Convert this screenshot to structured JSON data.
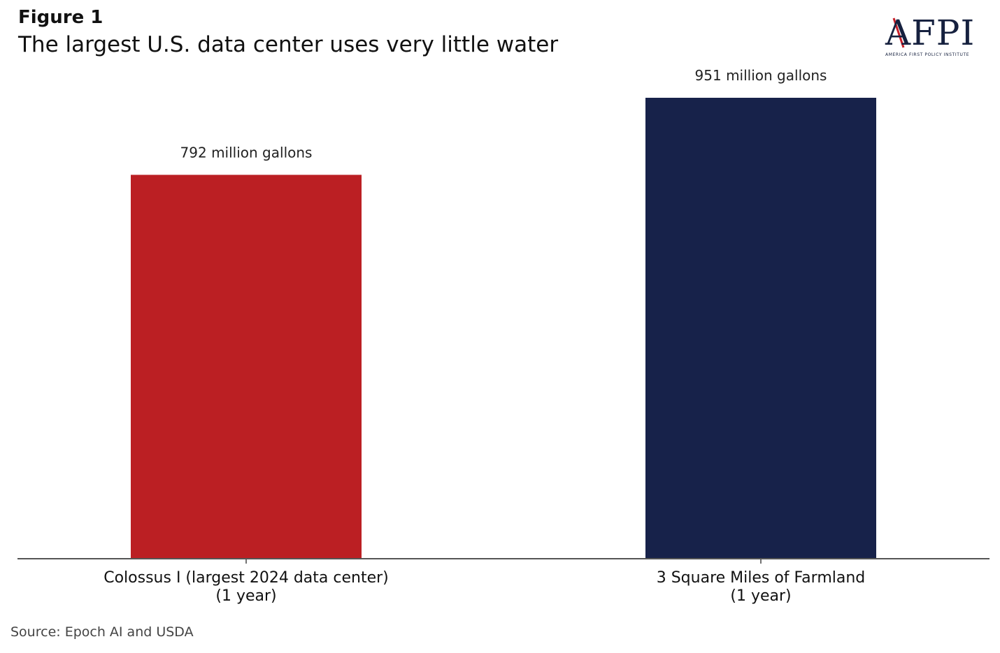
{
  "header": {
    "figure_label": "Figure 1",
    "title": "The largest U.S. data center uses very little water"
  },
  "logo": {
    "letters": "AFPI",
    "name": "AMERICA FIRST POLICY INSTITUTE"
  },
  "source": "Source: Epoch AI and USDA",
  "chart_data": {
    "type": "bar",
    "title": "The largest U.S. data center uses very little water",
    "categories": [
      [
        "Colossus I (largest 2024 data center)",
        "(1 year)"
      ],
      [
        "3 Square Miles of Farmland",
        "(1 year)"
      ]
    ],
    "values": [
      792,
      951
    ],
    "units": "million gallons",
    "data_labels": [
      "792 million gallons",
      "951 million gallons"
    ],
    "colors": [
      "#bb1f23",
      "#17224a"
    ],
    "xlabel": "",
    "ylabel": "",
    "ylim": [
      0,
      951
    ],
    "grid": false
  }
}
